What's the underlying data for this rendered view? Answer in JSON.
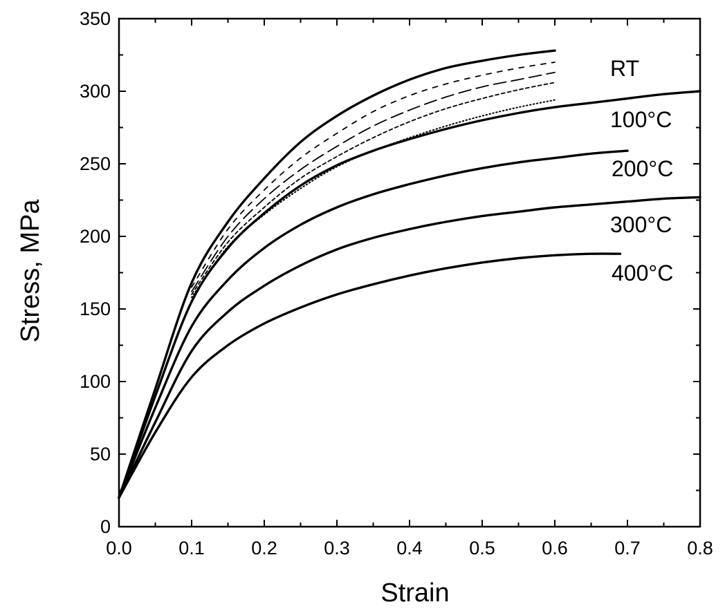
{
  "chart_data": {
    "type": "line",
    "xlabel": "Strain",
    "ylabel": "Stress, MPa",
    "xlim": [
      0,
      0.8
    ],
    "ylim": [
      0,
      350
    ],
    "xticks": [
      "0.0",
      "0.1",
      "0.2",
      "0.3",
      "0.4",
      "0.5",
      "0.6",
      "0.7",
      "0.8"
    ],
    "yticks": [
      "0",
      "50",
      "100",
      "150",
      "200",
      "250",
      "300",
      "350"
    ],
    "grid": false,
    "series": [
      {
        "name": "RT",
        "style": "solid",
        "x": [
          0.0,
          0.05,
          0.1,
          0.15,
          0.2,
          0.25,
          0.3,
          0.35,
          0.4,
          0.45,
          0.5,
          0.55,
          0.6
        ],
        "y": [
          20,
          95,
          168,
          210,
          240,
          265,
          283,
          297,
          308,
          316,
          321,
          325,
          328
        ]
      },
      {
        "name": "",
        "style": "short-dash",
        "x": [
          0.1,
          0.15,
          0.2,
          0.25,
          0.3,
          0.35,
          0.4,
          0.45,
          0.5,
          0.55,
          0.6
        ],
        "y": [
          165,
          205,
          232,
          254,
          271,
          286,
          297,
          305,
          311,
          316,
          320
        ]
      },
      {
        "name": "",
        "style": "long-dash",
        "x": [
          0.1,
          0.15,
          0.2,
          0.25,
          0.3,
          0.35,
          0.4,
          0.45,
          0.5,
          0.55,
          0.6
        ],
        "y": [
          162,
          200,
          226,
          246,
          262,
          276,
          287,
          296,
          303,
          308,
          313
        ]
      },
      {
        "name": "",
        "style": "dash",
        "x": [
          0.1,
          0.15,
          0.2,
          0.25,
          0.3,
          0.35,
          0.4,
          0.45,
          0.5,
          0.55,
          0.6
        ],
        "y": [
          160,
          196,
          220,
          240,
          255,
          268,
          279,
          288,
          295,
          301,
          306
        ]
      },
      {
        "name": "",
        "style": "dot",
        "x": [
          0.1,
          0.15,
          0.2,
          0.25,
          0.3,
          0.35,
          0.4,
          0.45,
          0.5,
          0.55,
          0.6
        ],
        "y": [
          158,
          193,
          215,
          233,
          248,
          259,
          268,
          276,
          283,
          289,
          294
        ]
      },
      {
        "name": "100°C",
        "style": "solid",
        "x": [
          0.0,
          0.05,
          0.1,
          0.15,
          0.2,
          0.25,
          0.3,
          0.35,
          0.4,
          0.45,
          0.5,
          0.55,
          0.6,
          0.65,
          0.7,
          0.75,
          0.8
        ],
        "y": [
          20,
          90,
          155,
          192,
          216,
          235,
          249,
          259,
          267,
          274,
          280,
          285,
          289,
          292,
          295,
          298,
          300
        ]
      },
      {
        "name": "200°C",
        "style": "solid",
        "x": [
          0.0,
          0.05,
          0.1,
          0.15,
          0.2,
          0.25,
          0.3,
          0.35,
          0.4,
          0.45,
          0.5,
          0.55,
          0.6,
          0.65,
          0.7
        ],
        "y": [
          20,
          82,
          138,
          170,
          192,
          208,
          220,
          229,
          236,
          242,
          247,
          251,
          254,
          257,
          259
        ]
      },
      {
        "name": "300°C",
        "style": "solid",
        "x": [
          0.0,
          0.05,
          0.1,
          0.15,
          0.2,
          0.25,
          0.3,
          0.35,
          0.4,
          0.45,
          0.5,
          0.55,
          0.6,
          0.65,
          0.7,
          0.75,
          0.8
        ],
        "y": [
          20,
          72,
          121,
          148,
          166,
          180,
          191,
          199,
          205,
          210,
          214,
          217,
          220,
          222,
          224,
          226,
          227
        ]
      },
      {
        "name": "400°C",
        "style": "solid",
        "x": [
          0.0,
          0.05,
          0.1,
          0.15,
          0.2,
          0.25,
          0.3,
          0.35,
          0.4,
          0.45,
          0.5,
          0.55,
          0.6,
          0.65,
          0.69
        ],
        "y": [
          20,
          65,
          103,
          125,
          140,
          151,
          160,
          167,
          173,
          178,
          182,
          185,
          187,
          188,
          188
        ]
      }
    ],
    "annotations": [
      "RT",
      "100°C",
      "200°C",
      "300°C",
      "400°C"
    ]
  }
}
